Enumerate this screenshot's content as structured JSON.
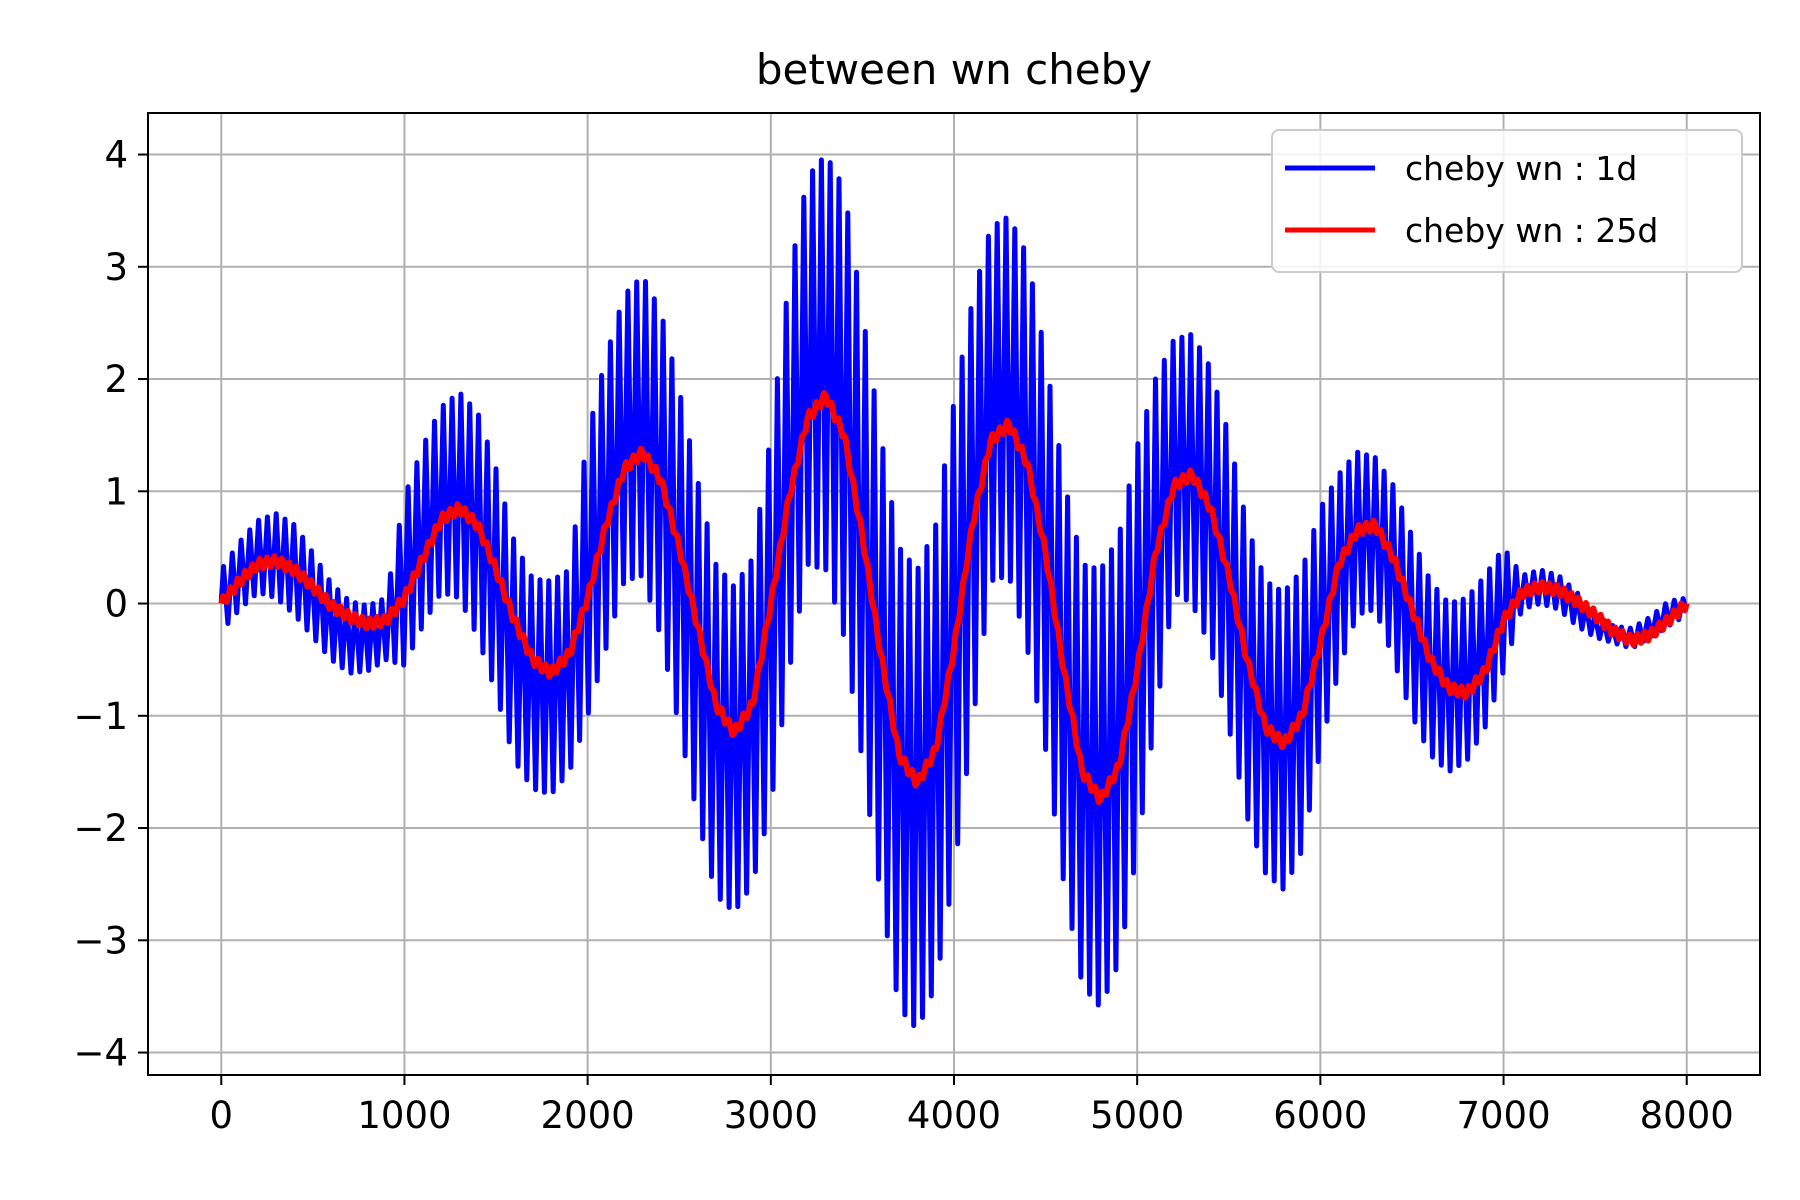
{
  "chart_data": {
    "type": "line",
    "title": "between wn cheby",
    "xlabel": "",
    "ylabel": "",
    "xlim": [
      -400,
      8400
    ],
    "ylim": [
      -4.2,
      4.37
    ],
    "xticks": [
      0,
      1000,
      2000,
      3000,
      4000,
      5000,
      6000,
      7000,
      8000
    ],
    "xtick_labels": [
      "0",
      "1000",
      "2000",
      "3000",
      "4000",
      "5000",
      "6000",
      "7000",
      "8000"
    ],
    "yticks": [
      4,
      3,
      2,
      1,
      0,
      -1,
      -2,
      -3,
      -4
    ],
    "ytick_labels": [
      "4",
      "3",
      "2",
      "1",
      "0",
      "−1",
      "−2",
      "−3",
      "−4"
    ],
    "grid": true,
    "legend": {
      "placement": "top-right"
    },
    "series": [
      {
        "name": "cheby wn : 1d",
        "color": "#0000ff",
        "upper": [
          [
            0,
            0.3
          ],
          [
            100,
            0.55
          ],
          [
            200,
            0.74
          ],
          [
            300,
            0.8
          ],
          [
            400,
            0.7
          ],
          [
            500,
            0.45
          ],
          [
            600,
            0.18
          ],
          [
            700,
            0.02
          ],
          [
            800,
            -0.02
          ],
          [
            900,
            0.05
          ],
          [
            1000,
            0.95
          ],
          [
            1100,
            1.4
          ],
          [
            1200,
            1.75
          ],
          [
            1300,
            1.88
          ],
          [
            1400,
            1.7
          ],
          [
            1500,
            1.2
          ],
          [
            1600,
            0.55
          ],
          [
            1700,
            0.22
          ],
          [
            1800,
            0.2
          ],
          [
            1900,
            0.3
          ],
          [
            2000,
            1.5
          ],
          [
            2100,
            2.2
          ],
          [
            2200,
            2.75
          ],
          [
            2300,
            2.92
          ],
          [
            2400,
            2.6
          ],
          [
            2500,
            1.9
          ],
          [
            2600,
            1.1
          ],
          [
            2700,
            0.35
          ],
          [
            2800,
            0.15
          ],
          [
            2900,
            0.4
          ],
          [
            3000,
            1.5
          ],
          [
            3100,
            2.9
          ],
          [
            3200,
            3.8
          ],
          [
            3300,
            4.0
          ],
          [
            3400,
            3.7
          ],
          [
            3500,
            2.6
          ],
          [
            3600,
            1.5
          ],
          [
            3700,
            0.5
          ],
          [
            3800,
            0.3
          ],
          [
            3900,
            0.7
          ],
          [
            4000,
            1.8
          ],
          [
            4100,
            2.7
          ],
          [
            4200,
            3.35
          ],
          [
            4300,
            3.45
          ],
          [
            4400,
            3.1
          ],
          [
            4500,
            2.2
          ],
          [
            4600,
            1.1
          ],
          [
            4700,
            0.35
          ],
          [
            4800,
            0.3
          ],
          [
            4900,
            0.6
          ],
          [
            5000,
            1.4
          ],
          [
            5100,
            2.0
          ],
          [
            5200,
            2.35
          ],
          [
            5300,
            2.4
          ],
          [
            5400,
            2.1
          ],
          [
            5500,
            1.5
          ],
          [
            5600,
            0.7
          ],
          [
            5700,
            0.2
          ],
          [
            5800,
            0.1
          ],
          [
            5900,
            0.3
          ],
          [
            6000,
            0.85
          ],
          [
            6100,
            1.15
          ],
          [
            6200,
            1.35
          ],
          [
            6300,
            1.3
          ],
          [
            6400,
            1.05
          ],
          [
            6500,
            0.6
          ],
          [
            6600,
            0.2
          ],
          [
            6700,
            0.0
          ],
          [
            6800,
            0.05
          ],
          [
            6900,
            0.25
          ],
          [
            7000,
            0.5
          ],
          [
            7100,
            0.25
          ],
          [
            7200,
            0.3
          ],
          [
            7300,
            0.25
          ],
          [
            7400,
            0.1
          ],
          [
            7500,
            -0.1
          ],
          [
            7600,
            -0.2
          ],
          [
            7700,
            -0.22
          ],
          [
            7800,
            -0.12
          ],
          [
            7900,
            0.02
          ],
          [
            8000,
            0.05
          ]
        ],
        "lower": [
          [
            0,
            -0.25
          ],
          [
            100,
            -0.05
          ],
          [
            200,
            0.1
          ],
          [
            300,
            0.05
          ],
          [
            400,
            -0.1
          ],
          [
            500,
            -0.3
          ],
          [
            600,
            -0.5
          ],
          [
            700,
            -0.62
          ],
          [
            800,
            -0.6
          ],
          [
            900,
            -0.5
          ],
          [
            1000,
            -0.55
          ],
          [
            1100,
            -0.2
          ],
          [
            1200,
            0.1
          ],
          [
            1300,
            0.05
          ],
          [
            1400,
            -0.3
          ],
          [
            1500,
            -0.8
          ],
          [
            1600,
            -1.4
          ],
          [
            1700,
            -1.65
          ],
          [
            1800,
            -1.7
          ],
          [
            1900,
            -1.5
          ],
          [
            2000,
            -1.0
          ],
          [
            2100,
            -0.4
          ],
          [
            2200,
            0.2
          ],
          [
            2300,
            0.25
          ],
          [
            2400,
            -0.3
          ],
          [
            2500,
            -1.1
          ],
          [
            2600,
            -1.9
          ],
          [
            2700,
            -2.6
          ],
          [
            2800,
            -2.75
          ],
          [
            2900,
            -2.5
          ],
          [
            3000,
            -1.8
          ],
          [
            3100,
            -0.6
          ],
          [
            3200,
            0.35
          ],
          [
            3300,
            0.3
          ],
          [
            3400,
            -0.3
          ],
          [
            3500,
            -1.4
          ],
          [
            3600,
            -2.6
          ],
          [
            3700,
            -3.6
          ],
          [
            3800,
            -3.8
          ],
          [
            3900,
            -3.4
          ],
          [
            4000,
            -2.4
          ],
          [
            4100,
            -1.1
          ],
          [
            4200,
            0.2
          ],
          [
            4300,
            0.25
          ],
          [
            4400,
            -0.4
          ],
          [
            4500,
            -1.3
          ],
          [
            4600,
            -2.5
          ],
          [
            4700,
            -3.4
          ],
          [
            4800,
            -3.6
          ],
          [
            4900,
            -3.2
          ],
          [
            5000,
            -2.2
          ],
          [
            5100,
            -1.0
          ],
          [
            5200,
            0.1
          ],
          [
            5300,
            0.0
          ],
          [
            5400,
            -0.4
          ],
          [
            5500,
            -1.1
          ],
          [
            5600,
            -1.9
          ],
          [
            5700,
            -2.4
          ],
          [
            5800,
            -2.55
          ],
          [
            5900,
            -2.2
          ],
          [
            6000,
            -1.3
          ],
          [
            6100,
            -0.6
          ],
          [
            6200,
            -0.1
          ],
          [
            6300,
            -0.05
          ],
          [
            6400,
            -0.5
          ],
          [
            6500,
            -1.0
          ],
          [
            6600,
            -1.35
          ],
          [
            6700,
            -1.5
          ],
          [
            6800,
            -1.4
          ],
          [
            6900,
            -1.1
          ],
          [
            7000,
            -0.6
          ],
          [
            7100,
            -0.05
          ],
          [
            7200,
            0.0
          ],
          [
            7300,
            -0.05
          ],
          [
            7400,
            -0.2
          ],
          [
            7500,
            -0.3
          ],
          [
            7600,
            -0.35
          ],
          [
            7700,
            -0.4
          ],
          [
            7800,
            -0.3
          ],
          [
            7900,
            -0.2
          ],
          [
            8000,
            -0.1
          ]
        ]
      },
      {
        "name": "cheby wn : 25d",
        "color": "#ff0000",
        "points": [
          [
            0,
            0.0
          ],
          [
            100,
            0.2
          ],
          [
            200,
            0.35
          ],
          [
            300,
            0.38
          ],
          [
            400,
            0.3
          ],
          [
            500,
            0.15
          ],
          [
            600,
            -0.02
          ],
          [
            700,
            -0.12
          ],
          [
            800,
            -0.18
          ],
          [
            900,
            -0.15
          ],
          [
            1000,
            0.05
          ],
          [
            1100,
            0.4
          ],
          [
            1200,
            0.75
          ],
          [
            1300,
            0.85
          ],
          [
            1400,
            0.7
          ],
          [
            1500,
            0.3
          ],
          [
            1600,
            -0.15
          ],
          [
            1700,
            -0.5
          ],
          [
            1800,
            -0.62
          ],
          [
            1900,
            -0.45
          ],
          [
            2000,
            0.05
          ],
          [
            2100,
            0.7
          ],
          [
            2200,
            1.2
          ],
          [
            2300,
            1.35
          ],
          [
            2400,
            1.1
          ],
          [
            2500,
            0.5
          ],
          [
            2600,
            -0.2
          ],
          [
            2700,
            -0.9
          ],
          [
            2800,
            -1.15
          ],
          [
            2900,
            -0.9
          ],
          [
            3000,
            0.0
          ],
          [
            3100,
            0.95
          ],
          [
            3200,
            1.65
          ],
          [
            3300,
            1.85
          ],
          [
            3400,
            1.5
          ],
          [
            3500,
            0.6
          ],
          [
            3600,
            -0.45
          ],
          [
            3700,
            -1.35
          ],
          [
            3800,
            -1.6
          ],
          [
            3900,
            -1.3
          ],
          [
            4000,
            -0.4
          ],
          [
            4100,
            0.7
          ],
          [
            4200,
            1.45
          ],
          [
            4300,
            1.6
          ],
          [
            4400,
            1.25
          ],
          [
            4500,
            0.45
          ],
          [
            4600,
            -0.6
          ],
          [
            4700,
            -1.5
          ],
          [
            4800,
            -1.75
          ],
          [
            4900,
            -1.45
          ],
          [
            5000,
            -0.6
          ],
          [
            5100,
            0.45
          ],
          [
            5200,
            1.05
          ],
          [
            5300,
            1.15
          ],
          [
            5400,
            0.85
          ],
          [
            5500,
            0.25
          ],
          [
            5600,
            -0.5
          ],
          [
            5700,
            -1.1
          ],
          [
            5800,
            -1.25
          ],
          [
            5900,
            -1.0
          ],
          [
            6000,
            -0.35
          ],
          [
            6100,
            0.35
          ],
          [
            6200,
            0.65
          ],
          [
            6300,
            0.7
          ],
          [
            6400,
            0.4
          ],
          [
            6500,
            -0.05
          ],
          [
            6600,
            -0.5
          ],
          [
            6700,
            -0.75
          ],
          [
            6800,
            -0.8
          ],
          [
            6900,
            -0.6
          ],
          [
            7000,
            -0.15
          ],
          [
            7100,
            0.1
          ],
          [
            7200,
            0.15
          ],
          [
            7300,
            0.12
          ],
          [
            7400,
            0.02
          ],
          [
            7500,
            -0.1
          ],
          [
            7600,
            -0.25
          ],
          [
            7700,
            -0.33
          ],
          [
            7800,
            -0.28
          ],
          [
            7900,
            -0.15
          ],
          [
            8000,
            0.0
          ]
        ]
      }
    ]
  }
}
